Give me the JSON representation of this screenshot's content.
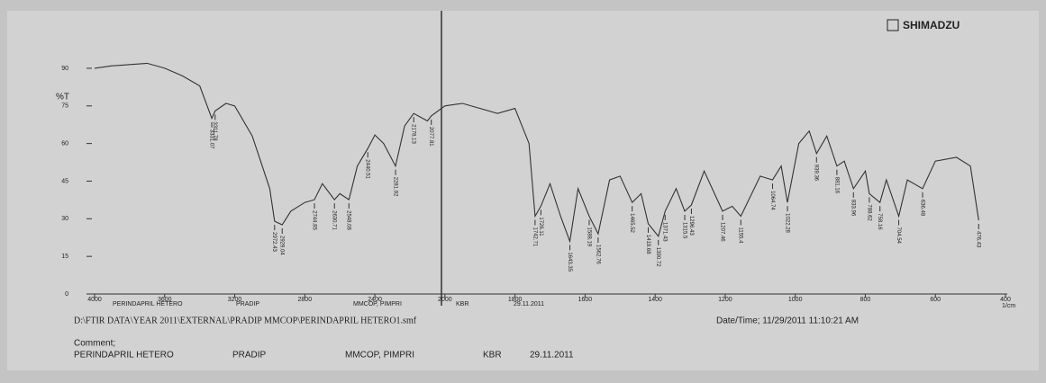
{
  "chart_data": {
    "type": "line",
    "brand": "SHIMADZU",
    "ylabel": "%T",
    "xlabel": "1/cm",
    "xlim": [
      4000,
      400
    ],
    "xticks": [
      4000,
      3600,
      3200,
      2800,
      2400,
      2000,
      1800,
      1600,
      1400,
      1200,
      1000,
      800,
      600,
      400
    ],
    "ylim": [
      0,
      95
    ],
    "yticks": [
      0,
      15,
      30,
      45,
      60,
      75,
      90
    ],
    "x": [
      4000,
      3900,
      3700,
      3600,
      3500,
      3400,
      3331.07,
      3311.78,
      3250,
      3200,
      3100,
      3000,
      2972.43,
      2929.04,
      2880,
      2800,
      2744.85,
      2700,
      2630.71,
      2600,
      2548.08,
      2500,
      2440.51,
      2400,
      2350,
      2281.92,
      2230,
      2178.13,
      2100,
      2077.81,
      2000,
      1950,
      1850,
      1800,
      1760,
      1742.71,
      1726.11,
      1700,
      1670,
      1643.35,
      1620,
      1588.19,
      1562.76,
      1530,
      1500,
      1465.52,
      1440,
      1419.68,
      1390.72,
      1371.43,
      1340,
      1315.5,
      1296.43,
      1260,
      1207.46,
      1180,
      1155.4,
      1100,
      1064.74,
      1040,
      1022.28,
      990,
      960,
      939.36,
      910,
      881.16,
      860,
      833.96,
      800,
      788.62,
      758.16,
      740,
      704.54,
      680,
      636.48,
      600,
      540,
      500,
      476.43
    ],
    "series": [
      {
        "color": "#333333",
        "values": [
          90,
          91,
          92,
          90,
          87,
          83,
          70,
          73,
          76,
          75,
          63,
          42,
          29,
          27.6,
          33,
          36.5,
          37.6,
          44,
          37.6,
          40,
          37.6,
          51,
          58,
          63.4,
          60,
          51,
          67,
          72,
          69,
          71,
          75,
          76,
          72,
          74,
          60,
          31,
          35,
          44,
          31,
          21,
          42,
          31,
          24,
          45.5,
          47,
          36.5,
          40,
          28,
          23,
          33,
          42,
          33,
          35.5,
          49,
          33,
          35,
          31,
          47,
          45.5,
          51,
          36.5,
          60,
          65,
          56,
          63,
          51,
          53,
          42,
          49,
          40,
          36.5,
          45.5,
          31,
          45.5,
          42,
          53,
          54.5,
          51,
          29.4
        ]
      }
    ],
    "peaks": [
      3331.07,
      3311.78,
      2972.43,
      2929.04,
      2744.85,
      2630.71,
      2548.08,
      2440.51,
      2281.92,
      2178.13,
      2077.81,
      1742.71,
      1726.11,
      1643.35,
      1588.19,
      1562.76,
      1465.52,
      1419.68,
      1390.72,
      1371.43,
      1315.5,
      1296.43,
      1207.46,
      1155.4,
      1064.74,
      1022.28,
      939.36,
      881.16,
      833.96,
      788.62,
      758.16,
      704.54,
      636.48,
      476.43
    ],
    "sample": {
      "name": "PERINDAPRIL HETERO",
      "operator": "PRADIP",
      "institute": "MMCOP, PIMPRI",
      "medium": "KBR",
      "date": "29.11.2011"
    },
    "file": "D:\\FTIR DATA\\YEAR 2011\\EXTERNAL\\PRADIP MMCOP\\PERINDAPRIL HETERO1.smf",
    "datetime": "Date/Time; 11/29/2011 11:10:21 AM",
    "comment_label": "Comment;"
  }
}
